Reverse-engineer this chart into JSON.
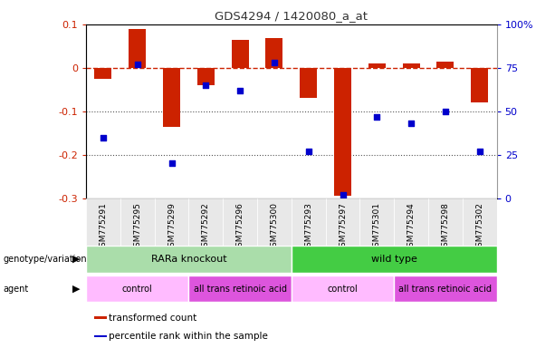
{
  "title": "GDS4294 / 1420080_a_at",
  "samples": [
    "GSM775291",
    "GSM775295",
    "GSM775299",
    "GSM775292",
    "GSM775296",
    "GSM775300",
    "GSM775293",
    "GSM775297",
    "GSM775301",
    "GSM775294",
    "GSM775298",
    "GSM775302"
  ],
  "red_bars": [
    -0.025,
    0.09,
    -0.135,
    -0.04,
    0.065,
    0.068,
    -0.07,
    -0.295,
    0.01,
    0.01,
    0.015,
    -0.08
  ],
  "blue_dots_pct": [
    35,
    77,
    20,
    65,
    62,
    78,
    27,
    2,
    47,
    43,
    50,
    27
  ],
  "ylim_left": [
    -0.3,
    0.1
  ],
  "ylim_right": [
    0,
    100
  ],
  "right_ticks": [
    0,
    25,
    50,
    75,
    100
  ],
  "right_tick_labels": [
    "0",
    "25",
    "50",
    "75",
    "100%"
  ],
  "left_ticks": [
    -0.3,
    -0.2,
    -0.1,
    0.0,
    0.1
  ],
  "left_tick_labels": [
    "-0.3",
    "-0.2",
    "-0.1",
    "0",
    "0.1"
  ],
  "genotype_groups": [
    {
      "label": "RARa knockout",
      "start": 0,
      "end": 6,
      "color": "#aaddaa"
    },
    {
      "label": "wild type",
      "start": 6,
      "end": 12,
      "color": "#44cc44"
    }
  ],
  "agent_groups": [
    {
      "label": "control",
      "start": 0,
      "end": 3,
      "color": "#ffbbff"
    },
    {
      "label": "all trans retinoic acid",
      "start": 3,
      "end": 6,
      "color": "#dd55dd"
    },
    {
      "label": "control",
      "start": 6,
      "end": 9,
      "color": "#ffbbff"
    },
    {
      "label": "all trans retinoic acid",
      "start": 9,
      "end": 12,
      "color": "#dd55dd"
    }
  ],
  "bar_color": "#cc2200",
  "dot_color": "#0000cc",
  "dashed_color": "#cc2200",
  "grid_color": "#555555",
  "bg_color": "#ffffff",
  "legend_items": [
    {
      "color": "#cc2200",
      "label": "transformed count"
    },
    {
      "color": "#0000cc",
      "label": "percentile rank within the sample"
    }
  ],
  "bar_width": 0.5
}
